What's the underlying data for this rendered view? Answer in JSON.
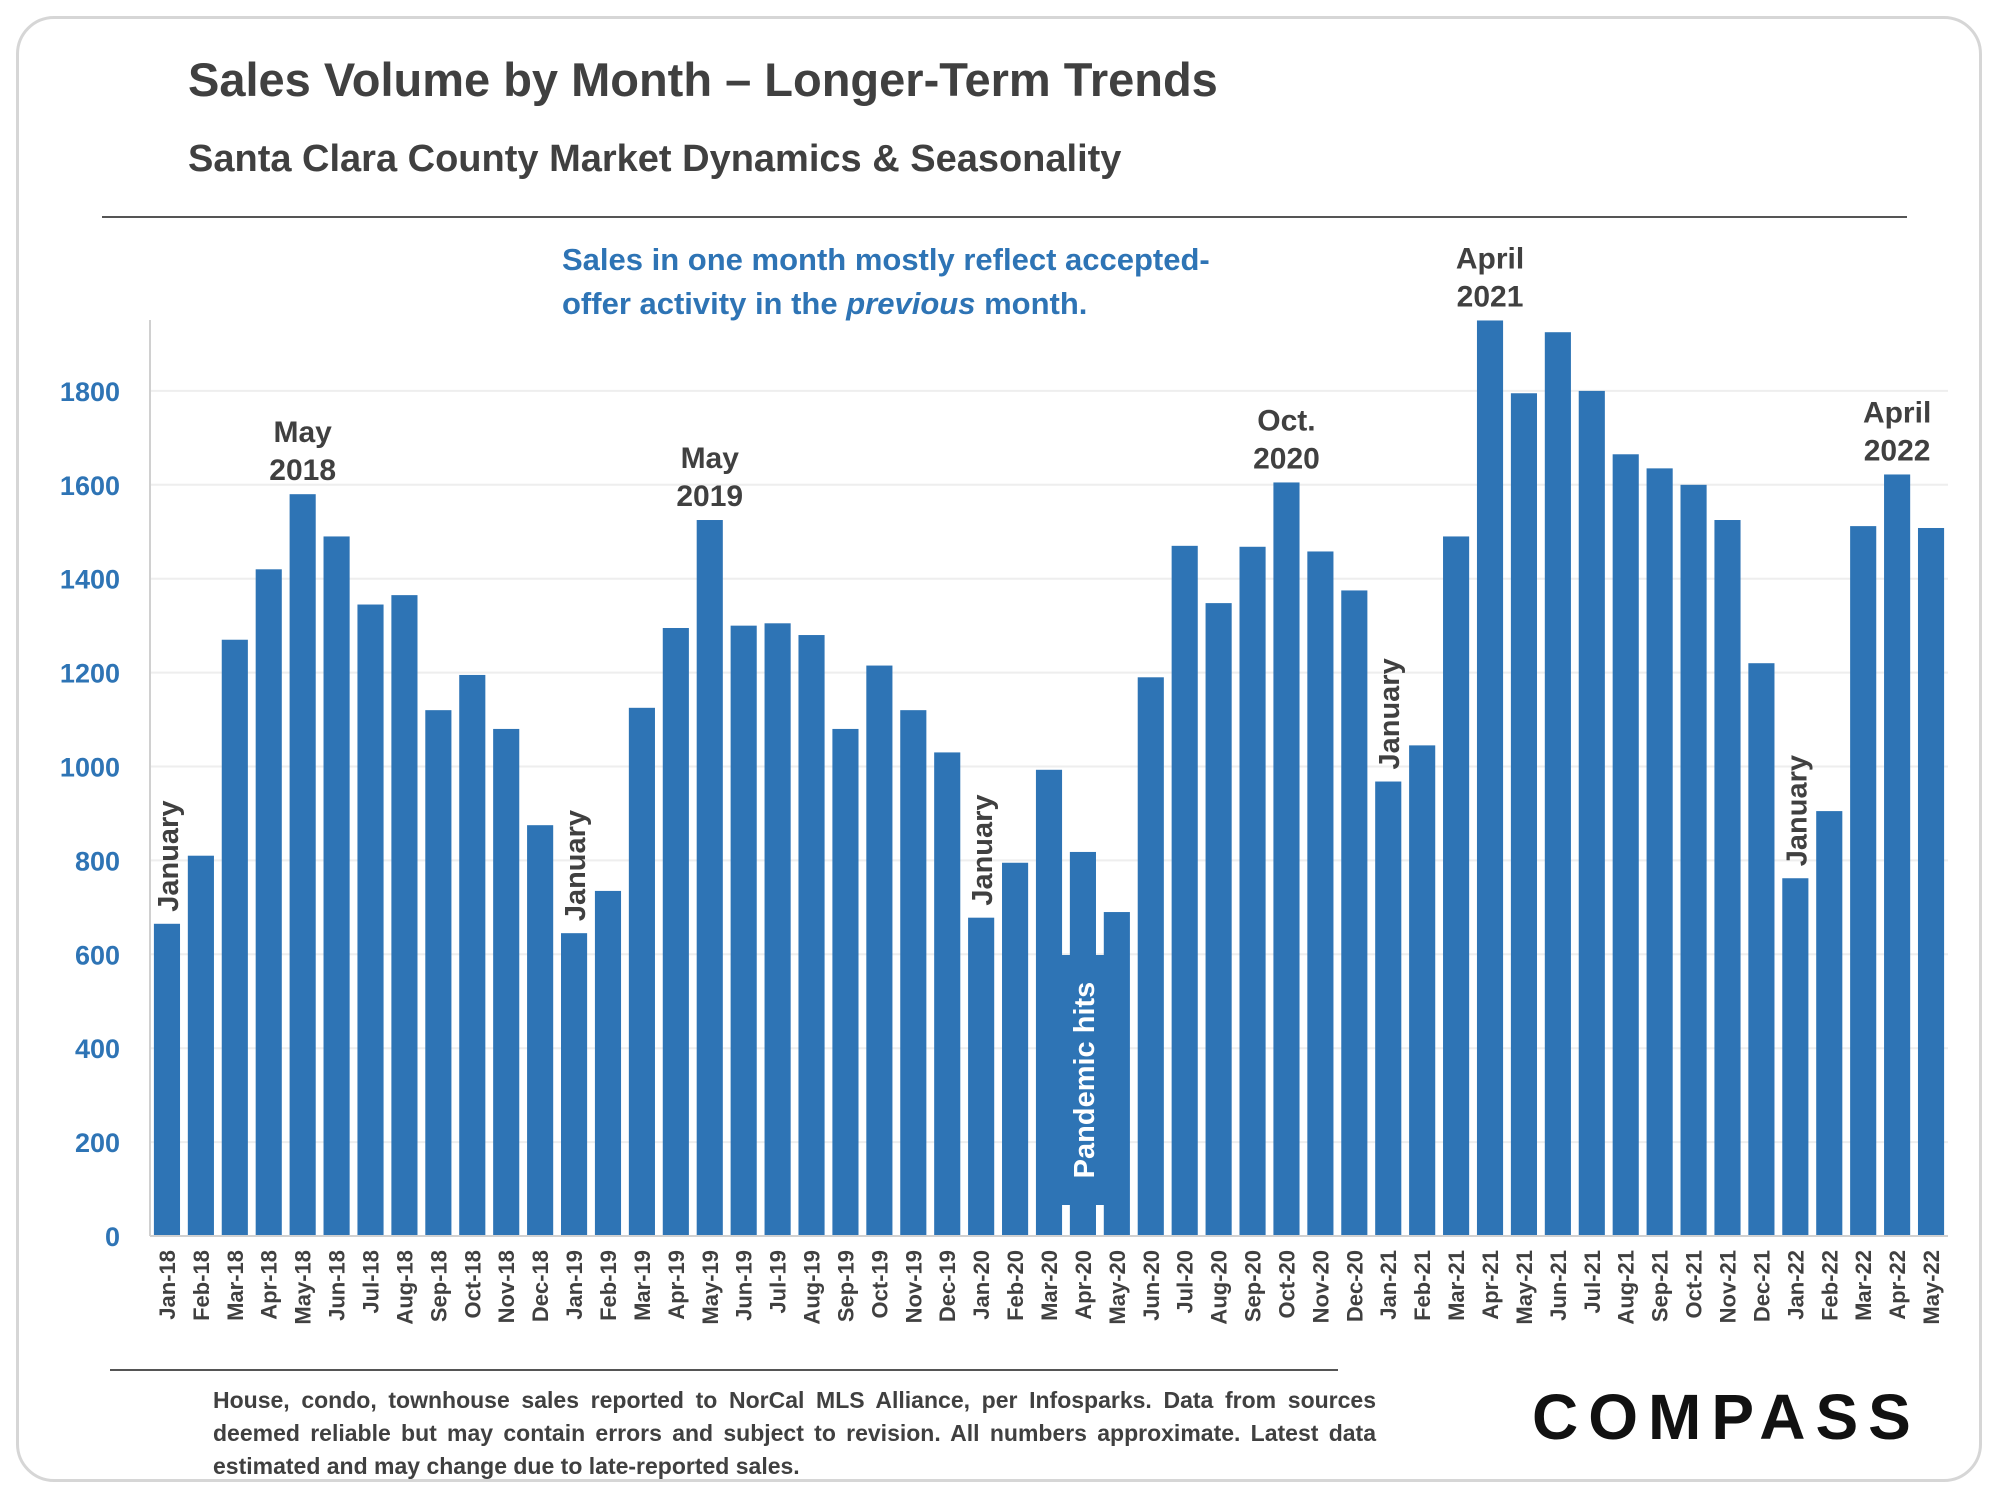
{
  "title": "Sales Volume by Month – Longer-Term Trends",
  "subtitle": "Santa Clara County Market Dynamics & Seasonality",
  "note": {
    "line1": "Sales in one month mostly reflect accepted-",
    "line2_before": "offer activity in the ",
    "line2_italic": "previous",
    "line2_after": " month."
  },
  "footnote": "House, condo, townhouse sales reported to NorCal MLS Alliance, per Infosparks. Data from sources deemed reliable but may contain errors and subject to revision. All numbers approximate. Latest data estimated and may change due to late-reported sales.",
  "logo": "COMPASS",
  "colors": {
    "bar": "#2e74b5",
    "axis_text": "#2e74b5",
    "annotation": "#404040",
    "grid": "#eeeeee"
  },
  "chart_data": {
    "type": "bar",
    "title": "Sales Volume by Month – Longer-Term Trends",
    "subtitle": "Santa Clara County Market Dynamics & Seasonality",
    "xlabel": "",
    "ylabel": "",
    "ylim": [
      0,
      1950
    ],
    "yticks": [
      0,
      200,
      400,
      600,
      800,
      1000,
      1200,
      1400,
      1600,
      1800
    ],
    "grid": true,
    "legend": "none",
    "categories": [
      "Jan-18",
      "Feb-18",
      "Mar-18",
      "Apr-18",
      "May-18",
      "Jun-18",
      "Jul-18",
      "Aug-18",
      "Sep-18",
      "Oct-18",
      "Nov-18",
      "Dec-18",
      "Jan-19",
      "Feb-19",
      "Mar-19",
      "Apr-19",
      "May-19",
      "Jun-19",
      "Jul-19",
      "Aug-19",
      "Sep-19",
      "Oct-19",
      "Nov-19",
      "Dec-19",
      "Jan-20",
      "Feb-20",
      "Mar-20",
      "Apr-20",
      "May-20",
      "Jun-20",
      "Jul-20",
      "Aug-20",
      "Sep-20",
      "Oct-20",
      "Nov-20",
      "Dec-20",
      "Jan-21",
      "Feb-21",
      "Mar-21",
      "Apr-21",
      "May-21",
      "Jun-21",
      "Jul-21",
      "Aug-21",
      "Sep-21",
      "Oct-21",
      "Nov-21",
      "Dec-21",
      "Jan-22",
      "Feb-22",
      "Mar-22",
      "Apr-22",
      "May-22"
    ],
    "values": [
      665,
      810,
      1270,
      1420,
      1580,
      1490,
      1345,
      1365,
      1120,
      1195,
      1080,
      875,
      645,
      735,
      1125,
      1295,
      1525,
      1300,
      1305,
      1280,
      1080,
      1215,
      1120,
      1030,
      678,
      795,
      993,
      818,
      690,
      1190,
      1470,
      1348,
      1468,
      1605,
      1458,
      1375,
      968,
      1045,
      1490,
      1950,
      1795,
      1925,
      1800,
      1665,
      1635,
      1600,
      1525,
      1220,
      762,
      905,
      1512,
      1622,
      1508
    ],
    "annotations": [
      {
        "text": [
          "January"
        ],
        "category": "Jan-18",
        "orientation": "vertical"
      },
      {
        "text": [
          "May",
          "2018"
        ],
        "category": "May-18",
        "orientation": "horizontal"
      },
      {
        "text": [
          "January"
        ],
        "category": "Jan-19",
        "orientation": "vertical"
      },
      {
        "text": [
          "May",
          "2019"
        ],
        "category": "May-19",
        "orientation": "horizontal"
      },
      {
        "text": [
          "January"
        ],
        "category": "Jan-20",
        "orientation": "vertical"
      },
      {
        "text": [
          "Pandemic hits"
        ],
        "category": "Apr-20",
        "orientation": "vertical"
      },
      {
        "text": [
          "Oct.",
          "2020"
        ],
        "category": "Oct-20",
        "orientation": "horizontal"
      },
      {
        "text": [
          "January"
        ],
        "category": "Jan-21",
        "orientation": "vertical"
      },
      {
        "text": [
          "April",
          "2021"
        ],
        "category": "Apr-21",
        "orientation": "horizontal"
      },
      {
        "text": [
          "January"
        ],
        "category": "Jan-22",
        "orientation": "vertical"
      },
      {
        "text": [
          "April",
          "2022"
        ],
        "category": "Apr-22",
        "orientation": "horizontal"
      }
    ]
  }
}
